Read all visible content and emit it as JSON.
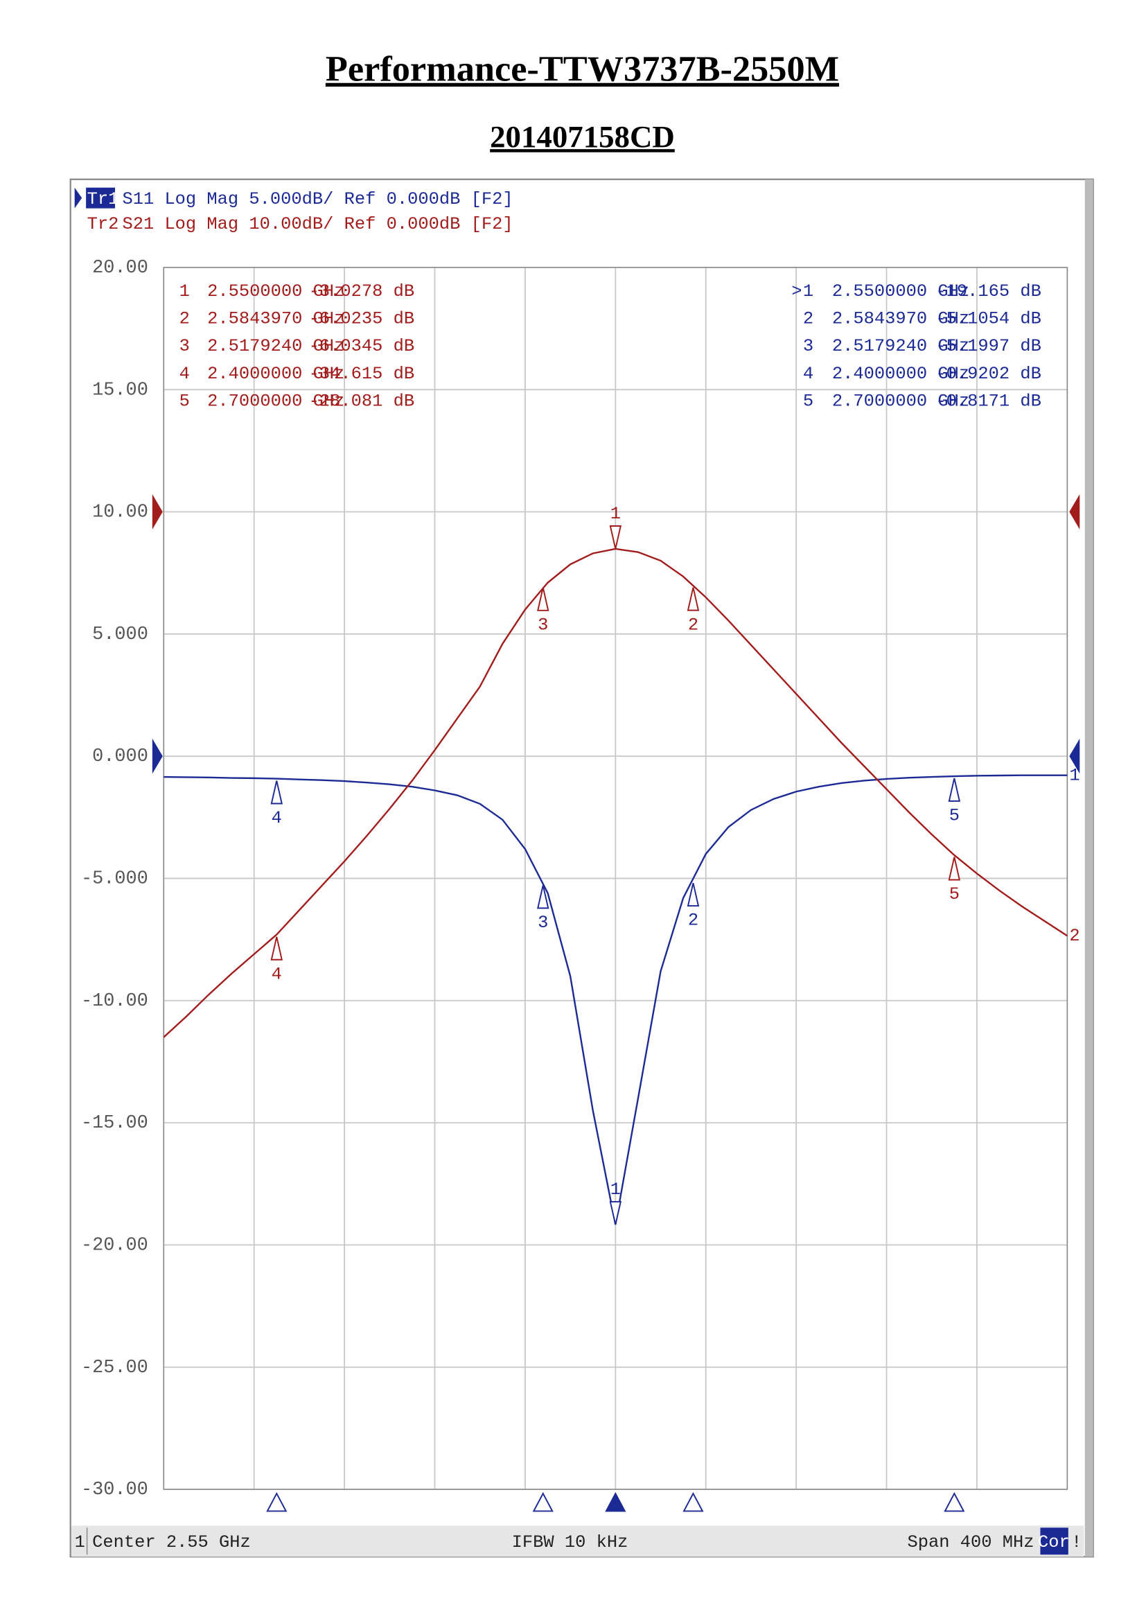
{
  "header": {
    "title": "Performance-TTW3737B-2550M",
    "subtitle": "201407158CD"
  },
  "chart_data": {
    "type": "line",
    "traces": [
      {
        "id": "Tr1",
        "text": "S11 Log Mag 5.000dB/ Ref 0.000dB [F2]"
      },
      {
        "id": "Tr2",
        "text": "S21 Log Mag 10.00dB/ Ref 0.000dB [F2]"
      }
    ],
    "x": [
      2.35,
      2.36,
      2.37,
      2.38,
      2.39,
      2.4,
      2.41,
      2.42,
      2.43,
      2.44,
      2.45,
      2.46,
      2.47,
      2.48,
      2.49,
      2.5,
      2.51,
      2.52,
      2.53,
      2.54,
      2.55,
      2.56,
      2.57,
      2.58,
      2.59,
      2.6,
      2.61,
      2.62,
      2.63,
      2.64,
      2.65,
      2.66,
      2.67,
      2.68,
      2.69,
      2.7,
      2.71,
      2.72,
      2.73,
      2.74,
      2.75
    ],
    "xlim": [
      2.35,
      2.75
    ],
    "ylim": [
      -30,
      20
    ],
    "yticks": [
      {
        "value": 20,
        "label": "20.00"
      },
      {
        "value": 15,
        "label": "15.00"
      },
      {
        "value": 10,
        "label": "10.00"
      },
      {
        "value": 5,
        "label": "5.000"
      },
      {
        "value": 0,
        "label": "0.000"
      },
      {
        "value": -5,
        "label": "-5.000"
      },
      {
        "value": -10,
        "label": "-10.00"
      },
      {
        "value": -15,
        "label": "-15.00"
      },
      {
        "value": -20,
        "label": "-20.00"
      },
      {
        "value": -25,
        "label": "-25.00"
      },
      {
        "value": -30,
        "label": "-30.00"
      }
    ],
    "y2lim": [
      -80,
      20
    ],
    "grid": true,
    "series": [
      {
        "name": "S11",
        "trace_number": "1",
        "color": "#1c2a96",
        "values": [
          -0.85,
          -0.86,
          -0.87,
          -0.89,
          -0.9,
          -0.92,
          -0.95,
          -0.98,
          -1.02,
          -1.08,
          -1.15,
          -1.25,
          -1.4,
          -1.6,
          -1.95,
          -2.6,
          -3.8,
          -5.6,
          -9.0,
          -14.5,
          -19.165,
          -14.0,
          -8.8,
          -5.8,
          -4.0,
          -2.9,
          -2.2,
          -1.75,
          -1.45,
          -1.25,
          -1.1,
          -1.0,
          -0.93,
          -0.88,
          -0.85,
          -0.82,
          -0.8,
          -0.79,
          -0.78,
          -0.78,
          -0.78
        ],
        "markers": [
          {
            "id": "1",
            "pointer": ">",
            "x": 2.55,
            "x_label": "2.5500000 GHz",
            "value": -19.165,
            "value_label": "-19.165 dB"
          },
          {
            "id": "2",
            "x": 2.584397,
            "x_label": "2.5843970 GHz",
            "value": -5.1054,
            "value_label": "-5.1054 dB"
          },
          {
            "id": "3",
            "x": 2.517924,
            "x_label": "2.5179240 GHz",
            "value": -5.1997,
            "value_label": "-5.1997 dB"
          },
          {
            "id": "4",
            "x": 2.4,
            "x_label": "2.4000000 GHz",
            "value": -0.9202,
            "value_label": "-0.9202 dB"
          },
          {
            "id": "5",
            "x": 2.7,
            "x_label": "2.7000000 GHz",
            "value": -0.8171,
            "value_label": "-0.8171 dB"
          }
        ]
      },
      {
        "name": "S21",
        "trace_number": "2",
        "color": "#a31c1c",
        "axis": "y2",
        "values": [
          -43.0,
          -41.3,
          -39.5,
          -37.8,
          -36.2,
          -34.6,
          -32.6,
          -30.6,
          -28.6,
          -26.5,
          -24.3,
          -22.0,
          -19.5,
          -16.9,
          -14.3,
          -10.8,
          -8.0,
          -5.8,
          -4.3,
          -3.4,
          -3.03,
          -3.3,
          -4.0,
          -5.3,
          -7.0,
          -8.9,
          -10.9,
          -12.9,
          -14.9,
          -16.9,
          -18.9,
          -20.8,
          -22.7,
          -24.6,
          -26.4,
          -28.1,
          -29.6,
          -31.0,
          -32.3,
          -33.5,
          -34.7
        ],
        "markers": [
          {
            "id": "1",
            "x": 2.55,
            "x_label": "2.5500000 GHz",
            "value": -3.0278,
            "value_label": "-3.0278 dB"
          },
          {
            "id": "2",
            "x": 2.584397,
            "x_label": "2.5843970 GHz",
            "value": -6.0235,
            "value_label": "-6.0235 dB"
          },
          {
            "id": "3",
            "x": 2.517924,
            "x_label": "2.5179240 GHz",
            "value": -6.0345,
            "value_label": "-6.0345 dB"
          },
          {
            "id": "4",
            "x": 2.4,
            "x_label": "2.4000000 GHz",
            "value": -34.615,
            "value_label": "-34.615 dB"
          },
          {
            "id": "5",
            "x": 2.7,
            "x_label": "2.7000000 GHz",
            "value": -28.081,
            "value_label": "-28.081 dB"
          }
        ]
      }
    ],
    "status": {
      "channel": "1",
      "center": "Center 2.55 GHz",
      "ifbw": "IFBW 10 kHz",
      "span": "Span 400 MHz",
      "cor": "Cor",
      "flag": "!"
    }
  }
}
